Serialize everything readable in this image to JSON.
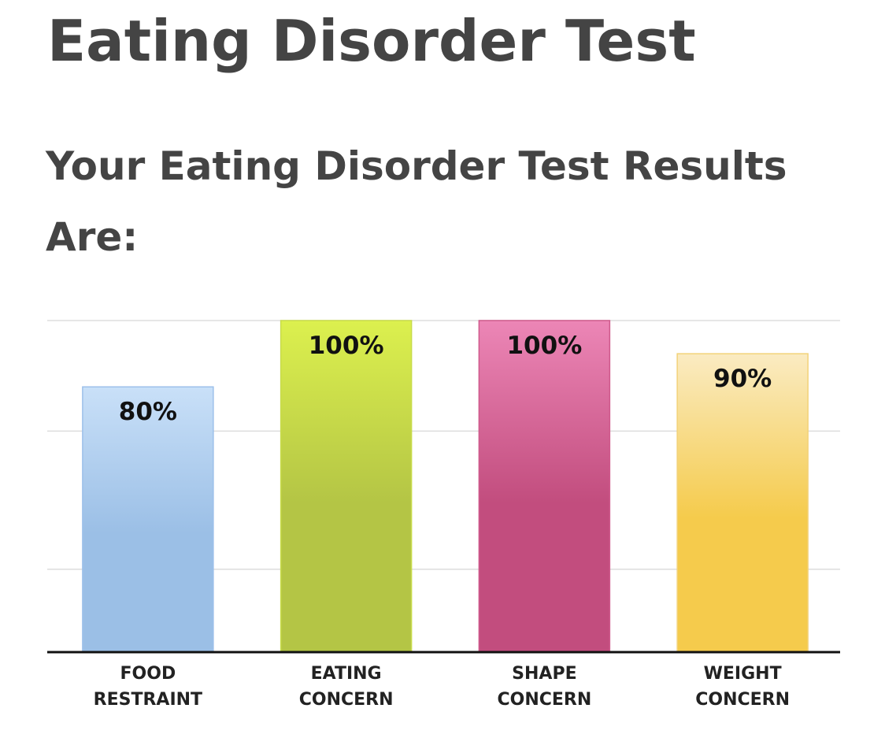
{
  "page": {
    "title": "Eating Disorder Test",
    "results_heading": "Your Eating Disorder Test Results Are:"
  },
  "chart_data": {
    "type": "bar",
    "title": "",
    "xlabel": "",
    "ylabel": "",
    "ylim": [
      0,
      100
    ],
    "grid": true,
    "categories": [
      [
        "FOOD",
        "RESTRAINT"
      ],
      [
        "EATING",
        "CONCERN"
      ],
      [
        "SHAPE",
        "CONCERN"
      ],
      [
        "WEIGHT",
        "CONCERN"
      ]
    ],
    "values": [
      80,
      100,
      100,
      90
    ],
    "value_labels": [
      "80%",
      "100%",
      "100%",
      "90%"
    ],
    "bar_colors": [
      {
        "top": "#c9e0f8",
        "bottom": "#9bbfe6",
        "edge": "#9dc0ea"
      },
      {
        "top": "#dcf04e",
        "bottom": "#b4c545",
        "edge": "#c8dc4a"
      },
      {
        "top": "#ec86b6",
        "bottom": "#c24d7e",
        "edge": "#cf5a8c"
      },
      {
        "top": "#faebc2",
        "bottom": "#f5cb4c",
        "edge": "#f2d27a"
      }
    ],
    "gridline_color": "#dddddd",
    "baseline_color": "#111111"
  }
}
